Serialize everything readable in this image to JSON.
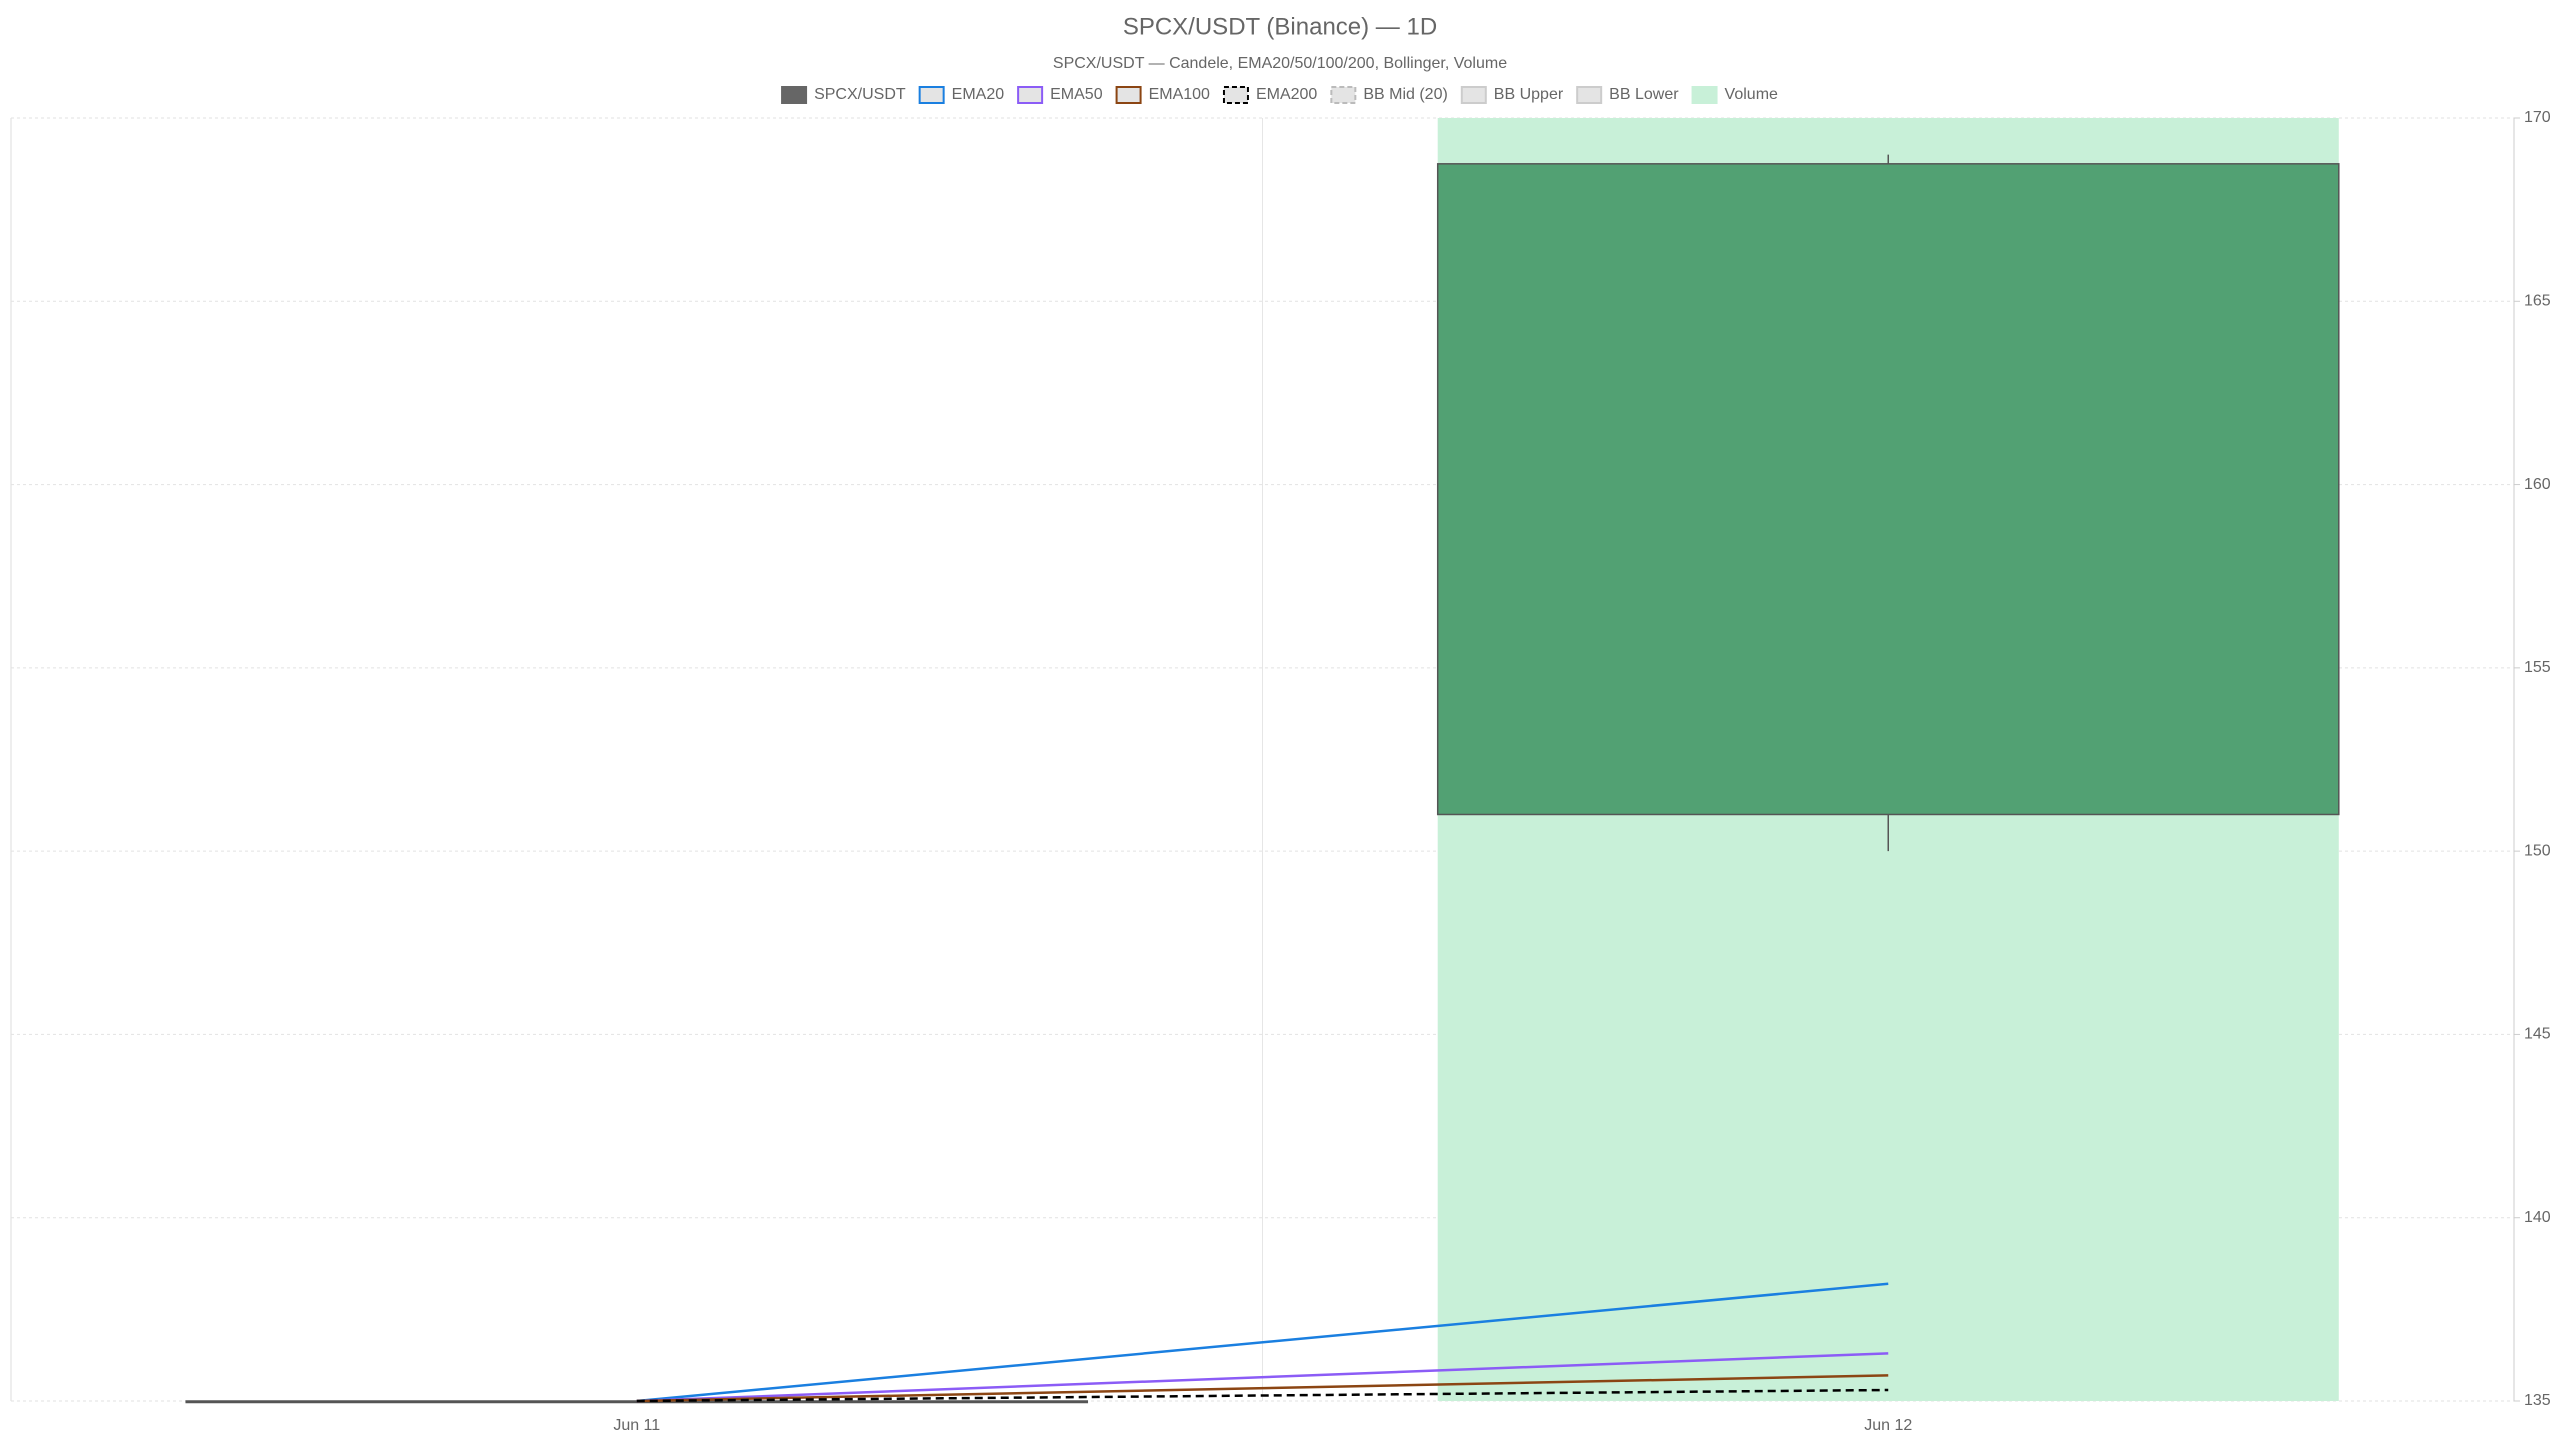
{
  "chart_data": {
    "type": "candlestick",
    "title": "SPCX/USDT (Binance) — 1D",
    "subtitle": "SPCX/USDT — Candele, EMA20/50/100/200, Bollinger, Volume",
    "categories": [
      "Jun 11",
      "Jun 12"
    ],
    "candles": {
      "name": "SPCX/USDT",
      "color": "#666666",
      "up_color": "#52a173",
      "open": [
        135,
        151.0
      ],
      "high": [
        135,
        169.0
      ],
      "low": [
        135,
        150.0
      ],
      "close": [
        135,
        168.75
      ]
    },
    "series": [
      {
        "name": "EMA20",
        "color": "#1a7fe0",
        "style": "solid",
        "values": [
          135,
          138.2
        ]
      },
      {
        "name": "EMA50",
        "color": "#8b5cf6",
        "style": "solid",
        "values": [
          135,
          136.3
        ]
      },
      {
        "name": "EMA100",
        "color": "#8b4513",
        "style": "solid",
        "values": [
          135,
          135.7
        ]
      },
      {
        "name": "EMA200",
        "color": "#000000",
        "style": "dashed",
        "values": [
          135,
          135.3
        ]
      },
      {
        "name": "BB Mid (20)",
        "color": "#bbbbbb",
        "style": "dashed",
        "values": [
          null,
          null
        ]
      },
      {
        "name": "BB Upper",
        "color": "#cccccc",
        "style": "solid",
        "values": [
          null,
          null
        ]
      },
      {
        "name": "BB Lower",
        "color": "#cccccc",
        "style": "solid",
        "values": [
          null,
          null
        ]
      },
      {
        "name": "Volume",
        "color": "#c8f0d8",
        "style": "bar",
        "axis": "y2",
        "values": [
          0,
          1
        ]
      }
    ],
    "ylim": [
      135,
      170
    ],
    "yticks": [
      135,
      140,
      145,
      150,
      155,
      160,
      165,
      170
    ],
    "y2lim": [
      0,
      1
    ],
    "grid": true,
    "legend": "top"
  }
}
